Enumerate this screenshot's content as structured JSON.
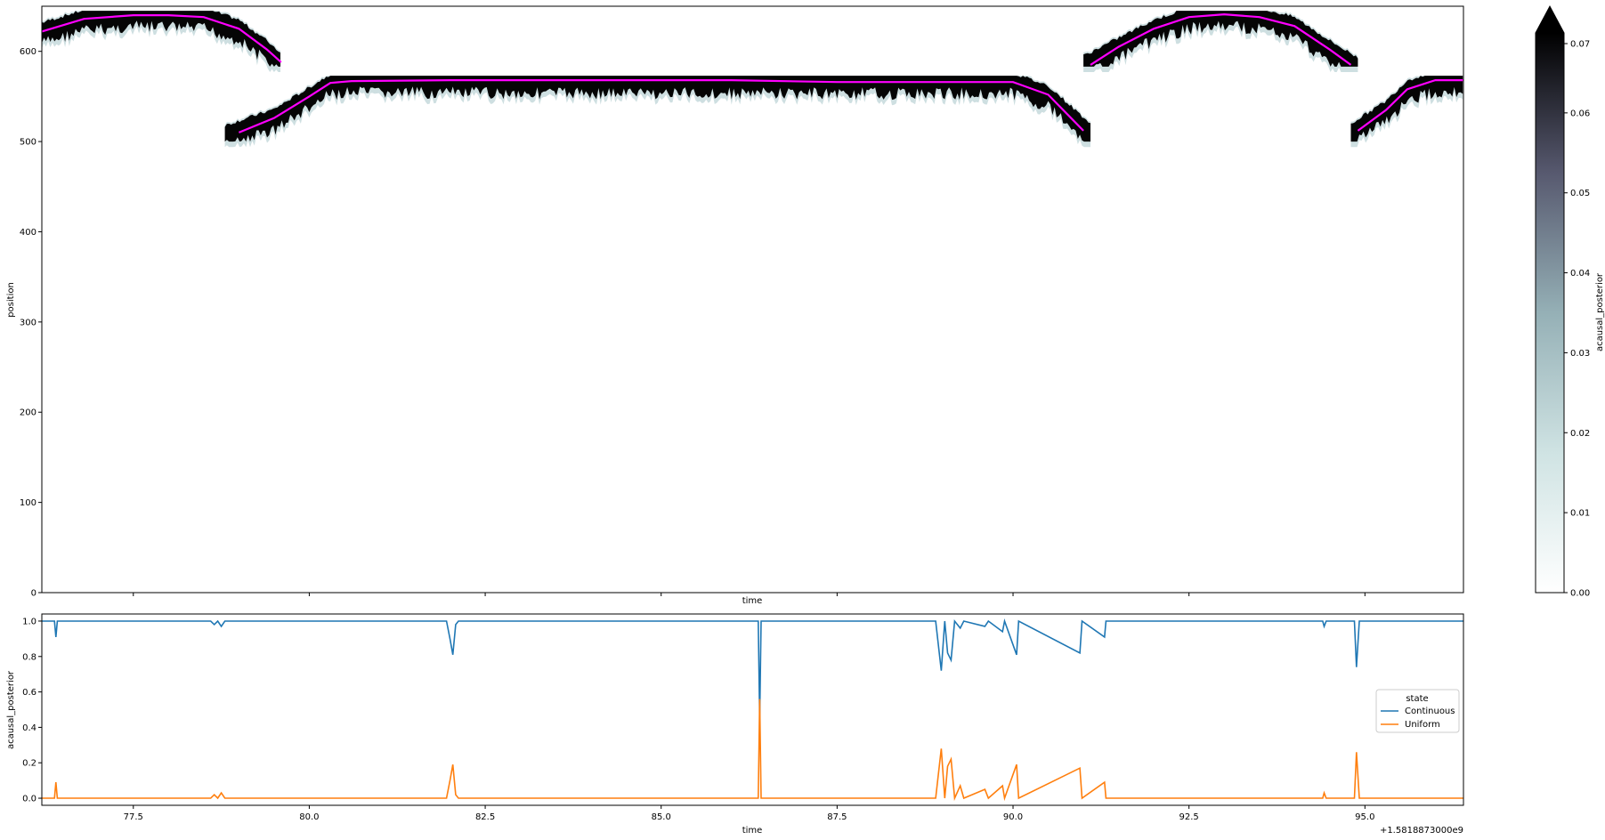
{
  "chart_data": [
    {
      "type": "heatmap",
      "xlabel": "time",
      "ylabel": "position",
      "ylim": [
        0,
        650
      ],
      "yticks": [
        "0",
        "100",
        "200",
        "300",
        "400",
        "500",
        "600"
      ],
      "colorbar": {
        "label": "acausal_posterior",
        "range": [
          0.0,
          0.07
        ],
        "ticks": [
          "0.00",
          "0.01",
          "0.02",
          "0.03",
          "0.04",
          "0.05",
          "0.06",
          "0.07"
        ],
        "extend": "max",
        "colormap": "bone_r"
      },
      "overlay": {
        "color": "#ff00ff",
        "segments": [
          [
            [
              76.2,
              622
            ],
            [
              76.8,
              636
            ],
            [
              77.5,
              640
            ],
            [
              78.0,
              640
            ],
            [
              78.5,
              638
            ],
            [
              79.0,
              625
            ],
            [
              79.4,
              602
            ],
            [
              79.6,
              588
            ]
          ],
          [
            [
              79.0,
              510
            ],
            [
              79.5,
              526
            ],
            [
              80.0,
              550
            ],
            [
              80.3,
              565
            ],
            [
              80.6,
              567
            ],
            [
              82.0,
              568
            ],
            [
              84.0,
              568
            ],
            [
              86.0,
              568
            ],
            [
              87.5,
              566
            ],
            [
              89.0,
              566
            ],
            [
              90.0,
              566
            ],
            [
              90.5,
              552
            ],
            [
              91.0,
              512
            ]
          ],
          [
            [
              91.1,
              585
            ],
            [
              91.5,
              605
            ],
            [
              92.0,
              625
            ],
            [
              92.5,
              638
            ],
            [
              93.0,
              641
            ],
            [
              93.5,
              638
            ],
            [
              94.0,
              628
            ],
            [
              94.5,
              602
            ],
            [
              94.8,
              585
            ]
          ],
          [
            [
              94.9,
              512
            ],
            [
              95.3,
              535
            ],
            [
              95.6,
              558
            ],
            [
              96.0,
              568
            ],
            [
              96.4,
              568
            ]
          ]
        ]
      },
      "bands": [
        {
          "x": [
            76.2,
            79.6
          ],
          "center": [
            [
              76.2,
              622
            ],
            [
              76.8,
              636
            ],
            [
              77.5,
              640
            ],
            [
              78.0,
              640
            ],
            [
              78.5,
              638
            ],
            [
              79.0,
              625
            ],
            [
              79.4,
              602
            ],
            [
              79.6,
              588
            ]
          ],
          "clip": [
            583,
            645
          ]
        },
        {
          "x": [
            78.8,
            91.1
          ],
          "center": [
            [
              78.8,
              508
            ],
            [
              79.5,
              526
            ],
            [
              80.0,
              550
            ],
            [
              80.3,
              565
            ],
            [
              80.6,
              567
            ],
            [
              90.0,
              566
            ],
            [
              90.5,
              552
            ],
            [
              91.1,
              510
            ]
          ],
          "clip": [
            500,
            573
          ]
        },
        {
          "x": [
            91.0,
            94.9
          ],
          "center": [
            [
              91.0,
              585
            ],
            [
              91.5,
              605
            ],
            [
              92.0,
              625
            ],
            [
              92.5,
              638
            ],
            [
              93.0,
              641
            ],
            [
              93.5,
              638
            ],
            [
              94.0,
              628
            ],
            [
              94.5,
              602
            ],
            [
              94.9,
              583
            ]
          ],
          "clip": [
            583,
            645
          ]
        },
        {
          "x": [
            94.8,
            96.4
          ],
          "center": [
            [
              94.8,
              510
            ],
            [
              95.3,
              535
            ],
            [
              95.6,
              558
            ],
            [
              96.0,
              568
            ],
            [
              96.4,
              568
            ]
          ],
          "clip": [
            500,
            573
          ]
        }
      ]
    },
    {
      "type": "line",
      "xlabel": "time",
      "ylabel": "acausal_posterior",
      "xlim": [
        76.2,
        96.4
      ],
      "ylim": [
        -0.04,
        1.04
      ],
      "xticks": [
        "77.5",
        "80.0",
        "82.5",
        "85.0",
        "87.5",
        "90.0",
        "92.5",
        "95.0"
      ],
      "yticks": [
        "0.0",
        "0.2",
        "0.4",
        "0.6",
        "0.8",
        "1.0"
      ],
      "offset_text": "+1.5818873000e9",
      "legend": {
        "title": "state",
        "position": "center-right"
      },
      "series": [
        {
          "name": "Continuous",
          "color": "#1f77b4",
          "points": [
            [
              76.2,
              1.0
            ],
            [
              76.38,
              1.0
            ],
            [
              76.4,
              0.91
            ],
            [
              76.42,
              1.0
            ],
            [
              78.6,
              1.0
            ],
            [
              78.65,
              0.98
            ],
            [
              78.7,
              1.0
            ],
            [
              78.75,
              0.97
            ],
            [
              78.8,
              1.0
            ],
            [
              81.95,
              1.0
            ],
            [
              82.0,
              0.9
            ],
            [
              82.04,
              0.81
            ],
            [
              82.08,
              0.98
            ],
            [
              82.12,
              1.0
            ],
            [
              86.38,
              1.0
            ],
            [
              86.4,
              0.44
            ],
            [
              86.42,
              1.0
            ],
            [
              88.9,
              1.0
            ],
            [
              88.98,
              0.72
            ],
            [
              89.03,
              1.0
            ],
            [
              89.07,
              0.82
            ],
            [
              89.12,
              0.78
            ],
            [
              89.17,
              1.0
            ],
            [
              89.25,
              0.96
            ],
            [
              89.3,
              1.0
            ],
            [
              89.6,
              0.97
            ],
            [
              89.65,
              1.0
            ],
            [
              89.85,
              0.94
            ],
            [
              89.88,
              1.0
            ],
            [
              90.05,
              0.81
            ],
            [
              90.08,
              1.0
            ],
            [
              90.95,
              0.82
            ],
            [
              90.98,
              1.0
            ],
            [
              91.3,
              0.91
            ],
            [
              91.32,
              1.0
            ],
            [
              94.4,
              1.0
            ],
            [
              94.42,
              0.97
            ],
            [
              94.45,
              1.0
            ],
            [
              94.85,
              1.0
            ],
            [
              94.88,
              0.74
            ],
            [
              94.92,
              1.0
            ],
            [
              96.4,
              1.0
            ]
          ]
        },
        {
          "name": "Uniform",
          "color": "#ff7f0e",
          "points": [
            [
              76.2,
              0.0
            ],
            [
              76.38,
              0.0
            ],
            [
              76.4,
              0.09
            ],
            [
              76.42,
              0.0
            ],
            [
              78.6,
              0.0
            ],
            [
              78.65,
              0.02
            ],
            [
              78.7,
              0.0
            ],
            [
              78.75,
              0.03
            ],
            [
              78.8,
              0.0
            ],
            [
              81.95,
              0.0
            ],
            [
              82.0,
              0.1
            ],
            [
              82.04,
              0.19
            ],
            [
              82.08,
              0.02
            ],
            [
              82.12,
              0.0
            ],
            [
              86.38,
              0.0
            ],
            [
              86.4,
              0.56
            ],
            [
              86.42,
              0.0
            ],
            [
              88.9,
              0.0
            ],
            [
              88.98,
              0.28
            ],
            [
              89.03,
              0.0
            ],
            [
              89.07,
              0.18
            ],
            [
              89.12,
              0.22
            ],
            [
              89.17,
              0.0
            ],
            [
              89.25,
              0.07
            ],
            [
              89.3,
              0.0
            ],
            [
              89.6,
              0.05
            ],
            [
              89.65,
              0.0
            ],
            [
              89.85,
              0.07
            ],
            [
              89.88,
              0.0
            ],
            [
              90.05,
              0.19
            ],
            [
              90.08,
              0.0
            ],
            [
              90.95,
              0.17
            ],
            [
              90.98,
              0.0
            ],
            [
              91.3,
              0.09
            ],
            [
              91.32,
              0.0
            ],
            [
              94.4,
              0.0
            ],
            [
              94.42,
              0.03
            ],
            [
              94.45,
              0.0
            ],
            [
              94.85,
              0.0
            ],
            [
              94.88,
              0.26
            ],
            [
              94.92,
              0.0
            ],
            [
              96.4,
              0.0
            ]
          ]
        }
      ]
    }
  ]
}
